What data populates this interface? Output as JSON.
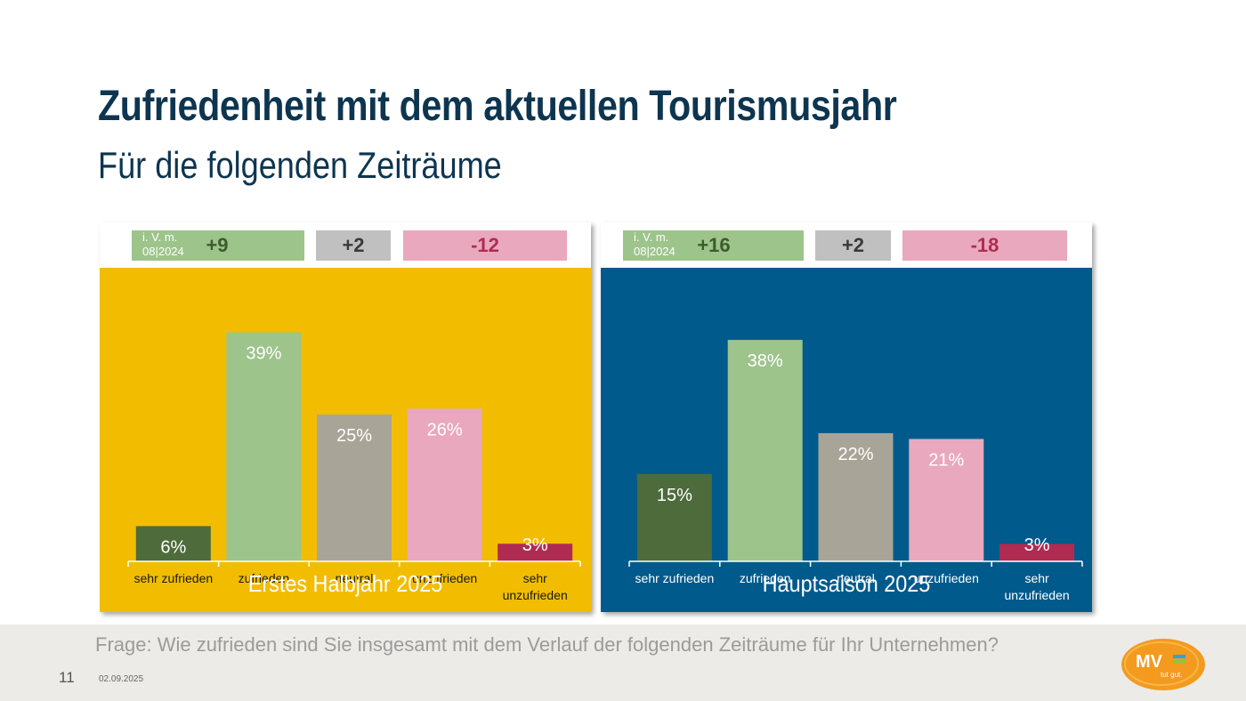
{
  "title": "Zufriedenheit mit dem aktuellen Tourismusjahr",
  "subtitle": "Für die folgenden Zeiträume",
  "chart_data": [
    {
      "type": "bar",
      "title": "Erstes Halbjahr 2025",
      "categories": [
        "sehr zufrieden",
        "zufrieden",
        "neutral",
        "unzufrieden",
        "sehr unzufrieden"
      ],
      "values": [
        6,
        39,
        25,
        26,
        3
      ],
      "labels": [
        "6%",
        "39%",
        "25%",
        "26%",
        "3%"
      ],
      "ylim": [
        0,
        40
      ],
      "colors": [
        "#4e6b3b",
        "#9dc48b",
        "#a9a498",
        "#e9a8bd",
        "#b02b52"
      ],
      "comparison": {
        "label_line1": "i. V. m.",
        "label_line2": "08|2024",
        "positive": "+9",
        "neutral": "+2",
        "negative": "-12"
      }
    },
    {
      "type": "bar",
      "title": "Hauptsaison 2025",
      "categories": [
        "sehr zufrieden",
        "zufrieden",
        "neutral",
        "unzufrieden",
        "sehr unzufrieden"
      ],
      "values": [
        15,
        38,
        22,
        21,
        3
      ],
      "labels": [
        "15%",
        "38%",
        "22%",
        "21%",
        "3%"
      ],
      "ylim": [
        0,
        40
      ],
      "colors": [
        "#4e6b3b",
        "#9dc48b",
        "#a9a498",
        "#e9a8bd",
        "#b02b52"
      ],
      "comparison": {
        "label_line1": "i. V. m.",
        "label_line2": "08|2024",
        "positive": "+16",
        "neutral": "+2",
        "negative": "-18"
      }
    }
  ],
  "footer": {
    "question": "Frage: Wie zufrieden sind Sie insgesamt mit dem Verlauf der folgenden Zeiträume für Ihr Unternehmen?",
    "page_number": "11",
    "date": "02.09.2025"
  },
  "logo": {
    "main": "MV",
    "tagline": "tut gut."
  }
}
